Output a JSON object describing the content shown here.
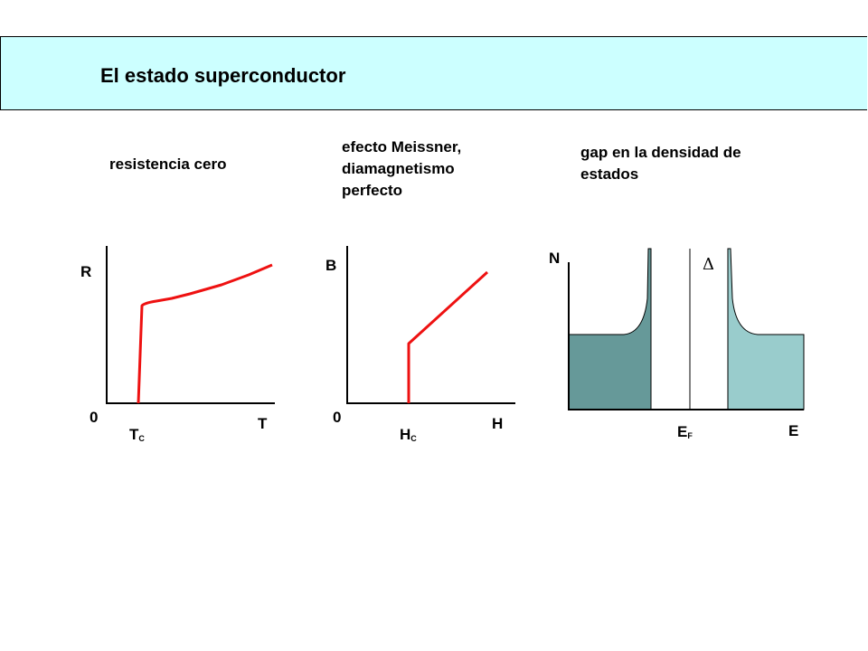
{
  "slide": {
    "title": "El estado superconductor"
  },
  "panels": [
    {
      "caption": "resistencia cero",
      "y_axis_label": "R",
      "origin_label": "0",
      "x_axis_label": "T",
      "critical_main": "T",
      "critical_sub": "C"
    },
    {
      "caption_lines": [
        "efecto Meissner,",
        "diamagnetismo",
        "perfecto"
      ],
      "y_axis_label": "B",
      "origin_label": "0",
      "x_axis_label": "H",
      "critical_main": "H",
      "critical_sub": "C"
    },
    {
      "caption_lines": [
        "gap en la densidad de",
        "estados"
      ],
      "y_axis_label": "N",
      "x_axis_label": "E",
      "fermi_main": "E",
      "fermi_sub": "F",
      "gap_symbol": "Δ"
    }
  ],
  "colors": {
    "banner_bg": "#ccffff",
    "curve": "#ee1111",
    "dos_filled": "#669999",
    "dos_empty": "#99cccc"
  }
}
